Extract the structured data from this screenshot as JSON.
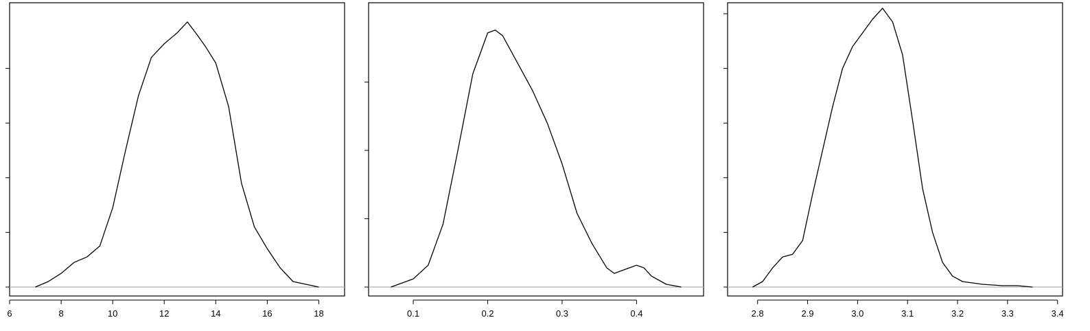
{
  "chart_data": [
    {
      "type": "line",
      "subtype": "density",
      "title": "",
      "xlabel": "",
      "ylabel": "",
      "xlim": [
        6,
        19
      ],
      "ylim": [
        0,
        1.0
      ],
      "x_ticks": [
        6,
        8,
        10,
        12,
        14,
        16,
        18
      ],
      "x_tick_labels": [
        "6",
        "8",
        "10",
        "12",
        "14",
        "16",
        "18"
      ],
      "y_ticks": [
        0,
        0.2,
        0.4,
        0.6,
        0.8
      ],
      "y_tick_labels": [],
      "baseline": 0,
      "series": [
        {
          "x": [
            7.0,
            7.5,
            8.0,
            8.5,
            9.0,
            9.5,
            10.0,
            10.5,
            11.0,
            11.5,
            12.0,
            12.5,
            12.9,
            13.3,
            13.6,
            14.0,
            14.5,
            15.0,
            15.5,
            16.0,
            16.5,
            17.0,
            17.5,
            18.0
          ],
          "y": [
            0.0,
            0.02,
            0.05,
            0.09,
            0.11,
            0.15,
            0.29,
            0.5,
            0.7,
            0.84,
            0.89,
            0.93,
            0.97,
            0.92,
            0.88,
            0.82,
            0.66,
            0.38,
            0.22,
            0.14,
            0.07,
            0.02,
            0.01,
            0.0
          ]
        }
      ],
      "grid": false,
      "legend": "none"
    },
    {
      "type": "line",
      "subtype": "density",
      "title": "",
      "xlabel": "",
      "ylabel": "",
      "xlim": [
        0.04,
        0.49
      ],
      "ylim": [
        0,
        1.0
      ],
      "x_ticks": [
        0.1,
        0.2,
        0.3,
        0.4
      ],
      "x_tick_labels": [
        "0.1",
        "0.2",
        "0.3",
        "0.4"
      ],
      "y_ticks": [
        0,
        0.25,
        0.5,
        0.75
      ],
      "y_tick_labels": [],
      "baseline": 0,
      "series": [
        {
          "x": [
            0.07,
            0.1,
            0.12,
            0.14,
            0.16,
            0.18,
            0.2,
            0.21,
            0.22,
            0.24,
            0.26,
            0.28,
            0.3,
            0.32,
            0.34,
            0.36,
            0.37,
            0.38,
            0.39,
            0.4,
            0.41,
            0.42,
            0.44,
            0.46
          ],
          "y": [
            0.0,
            0.03,
            0.08,
            0.23,
            0.5,
            0.78,
            0.93,
            0.94,
            0.92,
            0.82,
            0.72,
            0.6,
            0.45,
            0.27,
            0.16,
            0.07,
            0.05,
            0.06,
            0.07,
            0.08,
            0.07,
            0.04,
            0.01,
            0.0
          ]
        }
      ],
      "grid": false,
      "legend": "none"
    },
    {
      "type": "line",
      "subtype": "density",
      "title": "",
      "xlabel": "",
      "ylabel": "",
      "xlim": [
        2.74,
        3.41
      ],
      "ylim": [
        0,
        1.0
      ],
      "x_ticks": [
        2.8,
        2.9,
        3.0,
        3.1,
        3.2,
        3.3,
        3.4
      ],
      "x_tick_labels": [
        "2.8",
        "2.9",
        "3.0",
        "3.1",
        "3.2",
        "3.3",
        "3.4"
      ],
      "y_ticks": [
        0,
        0.2,
        0.4,
        0.6,
        0.8,
        1.0
      ],
      "y_tick_labels": [],
      "baseline": 0,
      "series": [
        {
          "x": [
            2.79,
            2.81,
            2.83,
            2.85,
            2.87,
            2.89,
            2.91,
            2.93,
            2.95,
            2.97,
            2.99,
            3.01,
            3.03,
            3.05,
            3.07,
            3.09,
            3.11,
            3.13,
            3.15,
            3.17,
            3.19,
            3.21,
            3.25,
            3.29,
            3.32,
            3.35
          ],
          "y": [
            0.0,
            0.02,
            0.07,
            0.11,
            0.12,
            0.17,
            0.34,
            0.5,
            0.66,
            0.8,
            0.88,
            0.93,
            0.98,
            1.02,
            0.97,
            0.85,
            0.61,
            0.36,
            0.2,
            0.09,
            0.04,
            0.02,
            0.01,
            0.005,
            0.005,
            0.0
          ]
        }
      ],
      "grid": false,
      "legend": "none"
    }
  ]
}
